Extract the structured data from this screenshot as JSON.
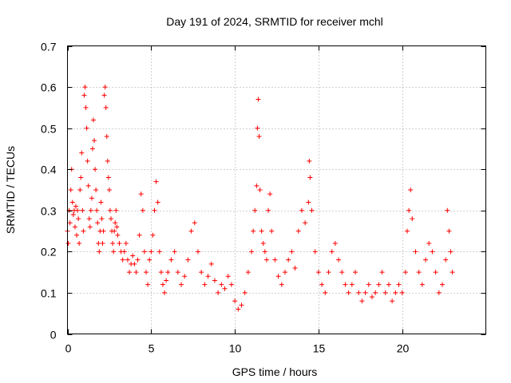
{
  "chart_data": {
    "type": "scatter",
    "title": "Day 191 of 2024, SRMTID for receiver mchl",
    "xlabel": "GPS time / hours",
    "ylabel": "SRMTID / TECUs",
    "xlim": [
      0,
      25
    ],
    "ylim": [
      0,
      0.7
    ],
    "xticks": [
      0,
      5,
      10,
      15,
      20
    ],
    "xtick_labels": [
      "0",
      "5",
      "10",
      "15",
      "20"
    ],
    "yticks": [
      0,
      0.1,
      0.2,
      0.3,
      0.4,
      0.5,
      0.6,
      0.7
    ],
    "ytick_labels": [
      "0",
      "0.1",
      "0.2",
      "0.3",
      "0.4",
      "0.5",
      "0.6",
      "0.7"
    ],
    "grid": true,
    "marker": "+",
    "color": "#ff0000",
    "series": [
      {
        "name": "SRMTID",
        "points": [
          [
            0.0,
            0.25
          ],
          [
            0.05,
            0.22
          ],
          [
            0.1,
            0.3
          ],
          [
            0.15,
            0.27
          ],
          [
            0.2,
            0.35
          ],
          [
            0.25,
            0.4
          ],
          [
            0.3,
            0.32
          ],
          [
            0.35,
            0.29
          ],
          [
            0.4,
            0.3
          ],
          [
            0.45,
            0.26
          ],
          [
            0.5,
            0.31
          ],
          [
            0.55,
            0.24
          ],
          [
            0.6,
            0.3
          ],
          [
            0.65,
            0.28
          ],
          [
            0.7,
            0.22
          ],
          [
            0.75,
            0.35
          ],
          [
            0.8,
            0.38
          ],
          [
            0.85,
            0.44
          ],
          [
            0.9,
            0.3
          ],
          [
            0.95,
            0.25
          ],
          [
            1.0,
            0.58
          ],
          [
            1.05,
            0.6
          ],
          [
            1.1,
            0.55
          ],
          [
            1.15,
            0.5
          ],
          [
            1.2,
            0.42
          ],
          [
            1.25,
            0.36
          ],
          [
            1.3,
            0.28
          ],
          [
            1.35,
            0.26
          ],
          [
            1.4,
            0.3
          ],
          [
            1.45,
            0.33
          ],
          [
            1.5,
            0.45
          ],
          [
            1.55,
            0.52
          ],
          [
            1.6,
            0.47
          ],
          [
            1.65,
            0.4
          ],
          [
            1.7,
            0.35
          ],
          [
            1.75,
            0.3
          ],
          [
            1.8,
            0.27
          ],
          [
            1.85,
            0.22
          ],
          [
            1.9,
            0.2
          ],
          [
            1.95,
            0.25
          ],
          [
            2.0,
            0.32
          ],
          [
            2.05,
            0.28
          ],
          [
            2.1,
            0.22
          ],
          [
            2.15,
            0.25
          ],
          [
            2.2,
            0.58
          ],
          [
            2.25,
            0.6
          ],
          [
            2.3,
            0.55
          ],
          [
            2.35,
            0.48
          ],
          [
            2.4,
            0.42
          ],
          [
            2.45,
            0.38
          ],
          [
            2.5,
            0.35
          ],
          [
            2.55,
            0.3
          ],
          [
            2.6,
            0.28
          ],
          [
            2.65,
            0.25
          ],
          [
            2.7,
            0.22
          ],
          [
            2.75,
            0.2
          ],
          [
            2.8,
            0.25
          ],
          [
            2.85,
            0.27
          ],
          [
            2.9,
            0.3
          ],
          [
            2.95,
            0.26
          ],
          [
            3.0,
            0.24
          ],
          [
            3.1,
            0.22
          ],
          [
            3.2,
            0.2
          ],
          [
            3.3,
            0.18
          ],
          [
            3.4,
            0.2
          ],
          [
            3.5,
            0.22
          ],
          [
            3.6,
            0.18
          ],
          [
            3.7,
            0.15
          ],
          [
            3.8,
            0.17
          ],
          [
            3.9,
            0.19
          ],
          [
            4.0,
            0.17
          ],
          [
            4.1,
            0.15
          ],
          [
            4.2,
            0.18
          ],
          [
            4.3,
            0.24
          ],
          [
            4.4,
            0.34
          ],
          [
            4.5,
            0.3
          ],
          [
            4.6,
            0.2
          ],
          [
            4.7,
            0.15
          ],
          [
            4.8,
            0.12
          ],
          [
            4.9,
            0.18
          ],
          [
            5.0,
            0.2
          ],
          [
            5.1,
            0.24
          ],
          [
            5.2,
            0.3
          ],
          [
            5.3,
            0.37
          ],
          [
            5.4,
            0.32
          ],
          [
            5.5,
            0.2
          ],
          [
            5.6,
            0.15
          ],
          [
            5.7,
            0.12
          ],
          [
            5.8,
            0.1
          ],
          [
            5.9,
            0.13
          ],
          [
            6.0,
            0.15
          ],
          [
            6.2,
            0.18
          ],
          [
            6.4,
            0.2
          ],
          [
            6.6,
            0.15
          ],
          [
            6.8,
            0.12
          ],
          [
            7.0,
            0.14
          ],
          [
            7.2,
            0.18
          ],
          [
            7.4,
            0.25
          ],
          [
            7.6,
            0.27
          ],
          [
            7.8,
            0.2
          ],
          [
            8.0,
            0.15
          ],
          [
            8.2,
            0.12
          ],
          [
            8.4,
            0.14
          ],
          [
            8.6,
            0.17
          ],
          [
            8.8,
            0.13
          ],
          [
            9.0,
            0.1
          ],
          [
            9.2,
            0.12
          ],
          [
            9.4,
            0.11
          ],
          [
            9.6,
            0.14
          ],
          [
            9.8,
            0.12
          ],
          [
            10.0,
            0.08
          ],
          [
            10.2,
            0.06
          ],
          [
            10.4,
            0.07
          ],
          [
            10.6,
            0.1
          ],
          [
            10.8,
            0.15
          ],
          [
            11.0,
            0.2
          ],
          [
            11.1,
            0.25
          ],
          [
            11.2,
            0.3
          ],
          [
            11.3,
            0.36
          ],
          [
            11.35,
            0.5
          ],
          [
            11.4,
            0.57
          ],
          [
            11.45,
            0.48
          ],
          [
            11.5,
            0.35
          ],
          [
            11.6,
            0.25
          ],
          [
            11.7,
            0.22
          ],
          [
            11.8,
            0.2
          ],
          [
            11.9,
            0.18
          ],
          [
            12.0,
            0.3
          ],
          [
            12.1,
            0.34
          ],
          [
            12.2,
            0.25
          ],
          [
            12.4,
            0.18
          ],
          [
            12.6,
            0.14
          ],
          [
            12.8,
            0.12
          ],
          [
            13.0,
            0.15
          ],
          [
            13.2,
            0.18
          ],
          [
            13.4,
            0.2
          ],
          [
            13.6,
            0.16
          ],
          [
            13.8,
            0.25
          ],
          [
            14.0,
            0.3
          ],
          [
            14.2,
            0.27
          ],
          [
            14.4,
            0.32
          ],
          [
            14.45,
            0.42
          ],
          [
            14.5,
            0.38
          ],
          [
            14.6,
            0.3
          ],
          [
            14.8,
            0.2
          ],
          [
            15.0,
            0.15
          ],
          [
            15.2,
            0.12
          ],
          [
            15.4,
            0.1
          ],
          [
            15.6,
            0.15
          ],
          [
            15.8,
            0.2
          ],
          [
            16.0,
            0.22
          ],
          [
            16.2,
            0.18
          ],
          [
            16.4,
            0.15
          ],
          [
            16.6,
            0.12
          ],
          [
            16.8,
            0.1
          ],
          [
            17.0,
            0.12
          ],
          [
            17.2,
            0.15
          ],
          [
            17.4,
            0.1
          ],
          [
            17.6,
            0.08
          ],
          [
            17.8,
            0.1
          ],
          [
            18.0,
            0.12
          ],
          [
            18.2,
            0.09
          ],
          [
            18.4,
            0.1
          ],
          [
            18.6,
            0.12
          ],
          [
            18.8,
            0.15
          ],
          [
            19.0,
            0.1
          ],
          [
            19.2,
            0.12
          ],
          [
            19.4,
            0.08
          ],
          [
            19.6,
            0.1
          ],
          [
            19.8,
            0.12
          ],
          [
            20.0,
            0.1
          ],
          [
            20.2,
            0.15
          ],
          [
            20.3,
            0.25
          ],
          [
            20.4,
            0.3
          ],
          [
            20.5,
            0.35
          ],
          [
            20.6,
            0.28
          ],
          [
            20.8,
            0.2
          ],
          [
            21.0,
            0.15
          ],
          [
            21.2,
            0.12
          ],
          [
            21.4,
            0.18
          ],
          [
            21.6,
            0.22
          ],
          [
            21.8,
            0.2
          ],
          [
            22.0,
            0.15
          ],
          [
            22.2,
            0.1
          ],
          [
            22.4,
            0.12
          ],
          [
            22.6,
            0.18
          ],
          [
            22.7,
            0.3
          ],
          [
            22.8,
            0.25
          ],
          [
            22.9,
            0.2
          ],
          [
            23.0,
            0.15
          ]
        ]
      }
    ]
  }
}
